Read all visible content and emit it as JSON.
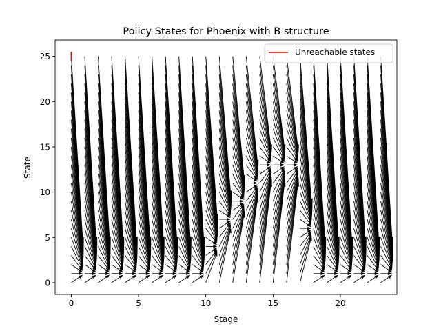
{
  "chart_data": {
    "type": "quiver",
    "title": "Policy States for Phoenix with B structure",
    "xlabel": "Stage",
    "ylabel": "State",
    "xlim": [
      -1.2,
      24.2
    ],
    "ylim": [
      -1.3,
      26.8
    ],
    "xticks": [
      0,
      5,
      10,
      15,
      20
    ],
    "yticks": [
      0,
      5,
      10,
      15,
      20,
      25
    ],
    "stages": [
      0,
      1,
      2,
      3,
      4,
      5,
      6,
      7,
      8,
      9,
      10,
      11,
      12,
      13,
      14,
      15,
      16,
      17,
      18,
      19,
      20,
      21,
      22,
      23
    ],
    "states": [
      0,
      1,
      2,
      3,
      4,
      5,
      6,
      7,
      8,
      9,
      10,
      11,
      12,
      13,
      14,
      15,
      16,
      17,
      18,
      19,
      20,
      21,
      22,
      23,
      24,
      25
    ],
    "policy_targets": [
      1,
      1,
      1,
      1,
      1,
      1,
      1,
      1,
      1,
      1,
      4,
      7,
      9,
      11,
      13,
      13,
      13,
      6,
      1,
      1,
      1,
      1,
      1,
      1
    ],
    "quiver_description": "At each (stage, state) an arrow points from the state toward the policy target at the next stage.",
    "legend": {
      "placement": "upper right",
      "entries": [
        {
          "label": "Unreachable states",
          "color": "#ff0000"
        }
      ]
    },
    "unreachable_segment": {
      "x": 0,
      "y": [
        24.5,
        25.5
      ]
    },
    "grid": false
  },
  "colors": {
    "arrow": "#000000",
    "unreachable": "#ff0000",
    "axes": "#000000",
    "legend_border": "#cccccc"
  }
}
